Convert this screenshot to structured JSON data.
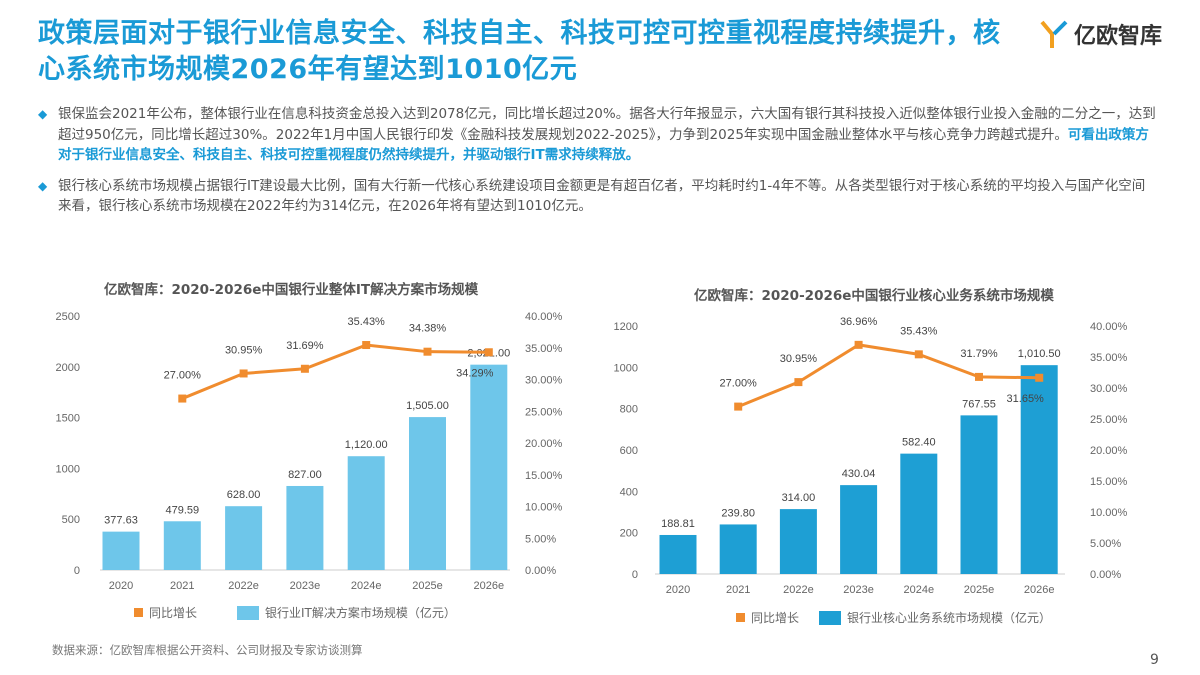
{
  "title": "政策层面对于银行业信息安全、科技自主、科技可控可控重视程度持续提升，核心系统市场规模2026年有望达到1010亿元",
  "logo": {
    "text": "亿欧智库",
    "icon": "yiou-logo-icon"
  },
  "bullets": [
    {
      "text": "银保监会2021年公布，整体银行业在信息科技资金总投入达到2078亿元，同比增长超过20%。据各大行年报显示，六大国有银行其科技投入近似整体银行业投入金融的二分之一，达到超过950亿元，同比增长超过30%。2022年1月中国人民银行印发《金融科技发展规划2022-2025》，力争到2025年实现中国金融业整体水平与核心竞争力跨越式提升。",
      "highlight": "可看出政策方对于银行业信息安全、科技自主、科技可控重视程度仍然持续提升，并驱动银行IT需求持续释放。"
    },
    {
      "text": "银行核心系统市场规模占据银行IT建设最大比例，国有大行新一代核心系统建设项目金额更是有超百亿者，平均耗时约1-4年不等。从各类型银行对于核心系统的平均投入与国产化空间来看，银行核心系统市场规模在2022年约为314亿元，在2026年将有望达到1010亿元。",
      "highlight": ""
    }
  ],
  "source": "数据来源：亿欧智库根据公开资料、公司财报及专家访谈测算",
  "page_number": "9",
  "colors": {
    "accent": "#1a9ad6",
    "line": "#f08c2e",
    "bar1": "#6ec6ea",
    "bar2": "#1e9fd4"
  },
  "chart_data": [
    {
      "type": "bar+line",
      "title": "亿欧智库：2020-2026e中国银行业整体IT解决方案市场规模",
      "categories": [
        "2020",
        "2021",
        "2022e",
        "2023e",
        "2024e",
        "2025e",
        "2026e"
      ],
      "series": [
        {
          "name": "银行业IT解决方案市场规模（亿元）",
          "type": "bar",
          "axis": "left",
          "values": [
            377.63,
            479.59,
            628.0,
            827.0,
            1120.0,
            1505.0,
            2021.0
          ],
          "labels": [
            "377.63",
            "479.59",
            "628.00",
            "827.00",
            "1,120.00",
            "1,505.00",
            "2,021.00"
          ]
        },
        {
          "name": "同比增长",
          "type": "line",
          "axis": "right",
          "values": [
            null,
            27.0,
            30.95,
            31.69,
            35.43,
            34.38,
            34.29
          ],
          "labels": [
            "",
            "27.00%",
            "30.95%",
            "31.69%",
            "35.43%",
            "34.38%",
            "34.29%"
          ]
        }
      ],
      "yleft": {
        "range": [
          0,
          2500
        ],
        "ticks": [
          "0",
          "500",
          "1000",
          "1500",
          "2000",
          "2500"
        ]
      },
      "yright": {
        "range": [
          0,
          40
        ],
        "ticks": [
          "0.00%",
          "5.00%",
          "10.00%",
          "15.00%",
          "20.00%",
          "25.00%",
          "30.00%",
          "35.00%",
          "40.00%"
        ]
      },
      "legend": "bottom"
    },
    {
      "type": "bar+line",
      "title": "亿欧智库：2020-2026e中国银行业核心业务系统市场规模",
      "categories": [
        "2020",
        "2021",
        "2022e",
        "2023e",
        "2024e",
        "2025e",
        "2026e"
      ],
      "series": [
        {
          "name": "银行业核心业务系统市场规模（亿元）",
          "type": "bar",
          "axis": "left",
          "values": [
            188.81,
            239.8,
            314.0,
            430.04,
            582.4,
            767.55,
            1010.5
          ],
          "labels": [
            "188.81",
            "239.80",
            "314.00",
            "430.04",
            "582.40",
            "767.55",
            "1,010.50"
          ]
        },
        {
          "name": "同比增长",
          "type": "line",
          "axis": "right",
          "values": [
            null,
            27.0,
            30.95,
            36.96,
            35.43,
            31.79,
            31.65
          ],
          "labels": [
            "",
            "27.00%",
            "30.95%",
            "36.96%",
            "35.43%",
            "31.79%",
            "31.65%"
          ]
        }
      ],
      "yleft": {
        "range": [
          0,
          1200
        ],
        "ticks": [
          "0",
          "200",
          "400",
          "600",
          "800",
          "1000",
          "1200"
        ]
      },
      "yright": {
        "range": [
          0,
          40
        ],
        "ticks": [
          "0.00%",
          "5.00%",
          "10.00%",
          "15.00%",
          "20.00%",
          "25.00%",
          "30.00%",
          "35.00%",
          "40.00%"
        ]
      },
      "legend": "bottom"
    }
  ]
}
